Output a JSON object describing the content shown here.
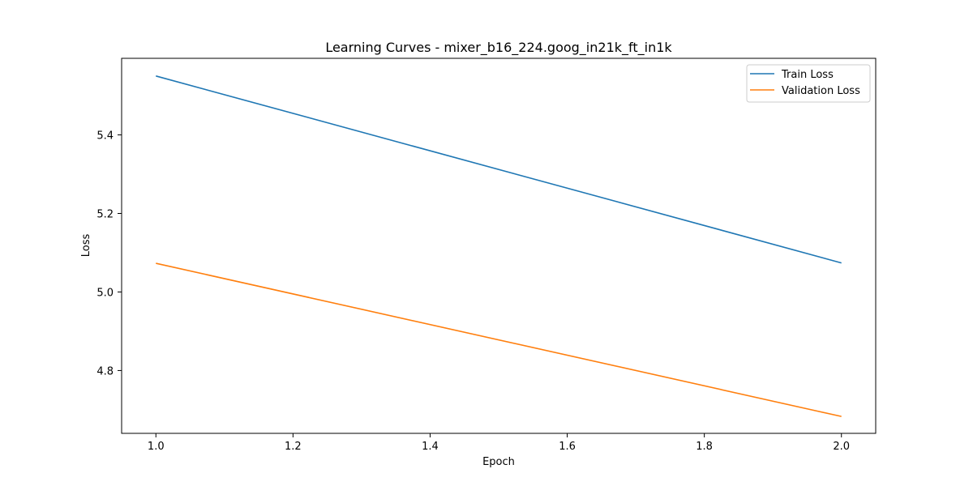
{
  "chart_data": {
    "type": "line",
    "title": "Learning Curves - mixer_b16_224.goog_in21k_ft_in1k",
    "xlabel": "Epoch",
    "ylabel": "Loss",
    "xlim": [
      0.95,
      2.05
    ],
    "ylim": [
      4.64,
      5.595
    ],
    "xticks": [
      1.0,
      1.2,
      1.4,
      1.6,
      1.8,
      2.0
    ],
    "xtick_labels": [
      "1.0",
      "1.2",
      "1.4",
      "1.6",
      "1.8",
      "2.0"
    ],
    "yticks": [
      4.8,
      5.0,
      5.2,
      5.4
    ],
    "ytick_labels": [
      "4.8",
      "5.0",
      "5.2",
      "5.4"
    ],
    "grid": false,
    "legend_position": "upper-right",
    "series": [
      {
        "name": "Train Loss",
        "color": "#1f77b4",
        "x": [
          1.0,
          2.0
        ],
        "y": [
          5.55,
          5.074
        ]
      },
      {
        "name": "Validation Loss",
        "color": "#ff7f0e",
        "x": [
          1.0,
          2.0
        ],
        "y": [
          5.073,
          4.683
        ]
      }
    ]
  }
}
